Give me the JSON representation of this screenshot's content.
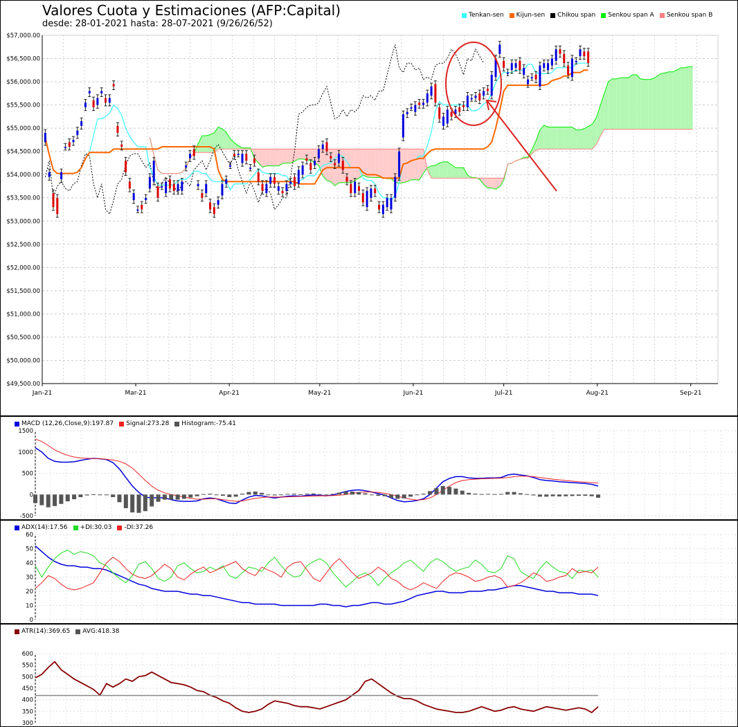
{
  "header": {
    "title": "Valores Cuota y Estimaciones (AFP:Capital)",
    "subtitle": "desde: 28-01-2021 hasta: 28-07-2021 (9/26/26/52)"
  },
  "colors": {
    "tenkan": "#33ffff",
    "kijun": "#ff6600",
    "chikou": "#000000",
    "senkouA": "#00ee00",
    "senkouB": "#ff8080",
    "cloud_bull": "#b3f7b3",
    "cloud_bear": "#ffcccc",
    "candle_up": "#0000dd",
    "candle_down": "#dd0000",
    "macd": "#0000dd",
    "signal": "#ee2222",
    "hist": "#555555",
    "adx": "#0000dd",
    "plus_di": "#22dd22",
    "minus_di": "#ee2222",
    "atr": "#880000",
    "atr_avg": "#888888",
    "annotation": "#dd2222"
  },
  "legends": {
    "main": [
      {
        "label": "Tenkan-sen",
        "color": "#33ffff"
      },
      {
        "label": "Kijun-sen",
        "color": "#ff6600"
      },
      {
        "label": "Chikou span",
        "color": "#000000"
      },
      {
        "label": "Senkou span A",
        "color": "#00ee00"
      },
      {
        "label": "Senkou span B",
        "color": "#ff8080"
      }
    ],
    "macd": [
      {
        "label": "MACD (12,26,Close,9):197.87",
        "color": "#0000dd"
      },
      {
        "label": "Signal:273.28",
        "color": "#ee2222"
      },
      {
        "label": "Histogram:-75.41",
        "color": "#555555"
      }
    ],
    "adx": [
      {
        "label": "ADX(14):17.56",
        "color": "#0000dd"
      },
      {
        "label": "+DI:30.03",
        "color": "#22dd22"
      },
      {
        "label": "-DI:37.26",
        "color": "#ee2222"
      }
    ],
    "atr": [
      {
        "label": "ATR(14):369.65",
        "color": "#880000"
      },
      {
        "label": "AVG:418.38",
        "color": "#555555"
      }
    ]
  },
  "chart_data": [
    {
      "id": "ichimoku",
      "type": "candlestick",
      "ylim": [
        49500,
        57000
      ],
      "y_ticks": [
        49500,
        50000,
        50500,
        51000,
        51500,
        52000,
        52500,
        53000,
        53500,
        54000,
        54500,
        55000,
        55500,
        56000,
        56500,
        57000
      ],
      "y_tick_labels": [
        "$49,500.00",
        "$50,000.00",
        "$50,500.00",
        "$51,000.00",
        "$51,500.00",
        "$52,000.00",
        "$52,500.00",
        "$53,000.00",
        "$53,500.00",
        "$54,000.00",
        "$54,500.00",
        "$55,000.00",
        "$55,500.00",
        "$56,000.00",
        "$56,500.00",
        "$57,000.00"
      ],
      "x_range_days": [
        0,
        224
      ],
      "x_ticks": [
        {
          "label": "Jan-21",
          "day": 0
        },
        {
          "label": "Mar-21",
          "day": 31
        },
        {
          "label": "Apr-21",
          "day": 62
        },
        {
          "label": "May-21",
          "day": 92
        },
        {
          "label": "Jun-21",
          "day": 123
        },
        {
          "label": "Jul-21",
          "day": 153
        },
        {
          "label": "Aug-21",
          "day": 184
        },
        {
          "label": "Sep-21",
          "day": 215
        }
      ],
      "candles_close": [
        54900,
        54050,
        53300,
        53150,
        54050,
        54600,
        54600,
        54750,
        54950,
        55150,
        55550,
        55800,
        55450,
        55650,
        55800,
        55550,
        55650,
        55900,
        54900,
        54600,
        54050,
        53700,
        53600,
        53250,
        53250,
        53500,
        53950,
        54300,
        53500,
        53750,
        53850,
        53700,
        53650,
        53800,
        53850,
        54200,
        54450,
        54400,
        53800,
        53500,
        53800,
        53250,
        53150,
        53450,
        53800,
        53900,
        54200,
        54400,
        54450,
        54450,
        54300,
        54150,
        54250,
        53850,
        53650,
        53800,
        53950,
        53800,
        53750,
        53600,
        53800,
        53850,
        53750,
        54100,
        54200,
        54300,
        54100,
        54300,
        54550,
        54650,
        54500,
        54350,
        54200,
        54450,
        54100,
        53850,
        53600,
        53850,
        53650,
        53400,
        53650,
        53700,
        53600,
        53250,
        53350,
        53500,
        53500,
        53950,
        54500,
        55300,
        55350,
        55450,
        55500,
        55500,
        55550,
        55750,
        55900,
        55550,
        55200,
        55250,
        55400,
        55250,
        55400,
        55350,
        55450,
        55700,
        55650,
        55700,
        55600,
        55800,
        55800,
        56150,
        56500,
        56800,
        56300,
        56200,
        56400,
        56400,
        56250,
        56300,
        56050,
        56100,
        56050,
        56350,
        56400,
        56400,
        56500,
        56700,
        56600,
        56400,
        56150,
        56500,
        56450,
        56700,
        56550,
        56400
      ],
      "candles_open": [
        54700,
        53950,
        53600,
        53500,
        53900,
        54600,
        54700,
        54700,
        54850,
        55050,
        55450,
        55750,
        55600,
        55500,
        55750,
        55650,
        55550,
        55950,
        55050,
        54650,
        54300,
        53850,
        53450,
        53250,
        53350,
        53450,
        53700,
        53850,
        53750,
        53750,
        53600,
        53900,
        53800,
        53650,
        53650,
        54150,
        54350,
        54550,
        53750,
        53600,
        53600,
        53400,
        53300,
        53350,
        53550,
        53800,
        54200,
        54450,
        54450,
        54250,
        54450,
        54150,
        54350,
        54050,
        53800,
        53600,
        53800,
        53950,
        53650,
        53650,
        53650,
        53800,
        53950,
        53800,
        54000,
        54350,
        54250,
        54200,
        54350,
        54550,
        54700,
        54400,
        54250,
        54250,
        54300,
        53950,
        53800,
        53600,
        53750,
        53600,
        53300,
        53500,
        53700,
        53350,
        53150,
        53300,
        53250,
        53500,
        53950,
        54800,
        55300,
        55450,
        55350,
        55550,
        55500,
        55550,
        55700,
        55950,
        55450,
        55050,
        55100,
        55350,
        55300,
        55450,
        55500,
        55450,
        55650,
        55650,
        55750,
        55700,
        55850,
        55700,
        56100,
        56600,
        56450,
        56200,
        56250,
        56300,
        56450,
        56150,
        55950,
        56100,
        56150,
        55900,
        56300,
        56250,
        56350,
        56450,
        56700,
        56600,
        56350,
        56100,
        56450,
        56550,
        56650,
        56650
      ]
    },
    {
      "id": "macd",
      "type": "line",
      "ylim": [
        -500,
        1500
      ],
      "y_ticks": [
        -500,
        0,
        500,
        1000,
        1500
      ],
      "series": [
        {
          "name": "MACD (12,26,Close,9)",
          "last": 197.87,
          "values": [
            1100,
            1000,
            850,
            780,
            760,
            760,
            770,
            800,
            830,
            850,
            840,
            820,
            750,
            600,
            400,
            200,
            50,
            -60,
            -80,
            -70,
            -80,
            -120,
            -150,
            -160,
            -160,
            -150,
            -100,
            -80,
            -100,
            -150,
            -200,
            -210,
            -130,
            -60,
            -20,
            -30,
            -60,
            -80,
            -60,
            -40,
            -30,
            -40,
            -20,
            -10,
            -20,
            -30,
            -10,
            30,
            70,
            100,
            110,
            90,
            60,
            20,
            -10,
            -80,
            -140,
            -170,
            -160,
            -140,
            -100,
            0,
            150,
            300,
            380,
            420,
            420,
            390,
            380,
            380,
            390,
            390,
            400,
            460,
            480,
            460,
            440,
            400,
            350,
            330,
            320,
            300,
            290,
            280,
            270,
            260,
            240,
            200
          ]
        },
        {
          "name": "Signal",
          "last": 273.28,
          "values": [
            1300,
            1250,
            1150,
            1050,
            980,
            920,
            880,
            860,
            850,
            845,
            840,
            830,
            810,
            780,
            720,
            620,
            480,
            330,
            200,
            100,
            40,
            0,
            -30,
            -60,
            -90,
            -110,
            -110,
            -100,
            -100,
            -120,
            -140,
            -160,
            -150,
            -120,
            -90,
            -70,
            -60,
            -60,
            -60,
            -55,
            -50,
            -45,
            -40,
            -35,
            -30,
            -30,
            -25,
            -15,
            0,
            30,
            50,
            60,
            60,
            50,
            30,
            0,
            -40,
            -80,
            -110,
            -130,
            -120,
            -80,
            0,
            100,
            200,
            280,
            330,
            350,
            360,
            370,
            375,
            380,
            385,
            400,
            420,
            430,
            430,
            420,
            400,
            380,
            360,
            345,
            330,
            315,
            300,
            290,
            280,
            270
          ]
        },
        {
          "name": "Histogram",
          "last": -75.41,
          "values": [
            -200,
            -250,
            -300,
            -270,
            -220,
            -160,
            -110,
            -60,
            -20,
            5,
            0,
            -10,
            -60,
            -180,
            -320,
            -420,
            -430,
            -390,
            -280,
            -170,
            -120,
            -120,
            -120,
            -100,
            -70,
            -40,
            10,
            20,
            0,
            -30,
            -60,
            -50,
            20,
            60,
            70,
            40,
            0,
            -20,
            0,
            15,
            20,
            5,
            20,
            25,
            10,
            0,
            15,
            45,
            70,
            70,
            60,
            30,
            0,
            -30,
            -40,
            -80,
            -100,
            -90,
            -50,
            -10,
            20,
            80,
            150,
            200,
            180,
            140,
            90,
            40,
            20,
            10,
            15,
            10,
            15,
            60,
            60,
            30,
            10,
            -20,
            -50,
            -50,
            -40,
            -45,
            -40,
            -35,
            -30,
            -30,
            -40,
            -75
          ]
        }
      ]
    },
    {
      "id": "adx",
      "type": "line",
      "ylim": [
        0,
        60
      ],
      "y_ticks": [
        0,
        10,
        20,
        30,
        40,
        50,
        60
      ],
      "series": [
        {
          "name": "ADX(14)",
          "last": 17.56,
          "values": [
            52,
            48,
            44,
            41,
            39,
            38,
            38,
            37,
            37,
            36,
            36,
            35,
            33,
            31,
            29,
            27,
            25,
            24,
            22,
            21,
            20,
            20,
            20,
            19,
            18,
            18,
            17,
            17,
            16,
            15,
            14,
            13,
            12,
            12,
            11,
            11,
            11,
            11,
            10,
            10,
            10,
            10,
            10,
            10,
            11,
            11,
            10,
            10,
            9,
            10,
            10,
            11,
            12,
            12,
            11,
            11,
            12,
            13,
            15,
            17,
            18,
            19,
            20,
            20,
            19,
            19,
            19,
            20,
            20,
            20,
            21,
            21,
            22,
            23,
            24,
            24,
            23,
            22,
            21,
            20,
            20,
            19,
            19,
            19,
            18,
            18,
            18,
            17
          ]
        },
        {
          "name": "+DI",
          "last": 30.03,
          "values": [
            38,
            30,
            37,
            43,
            47,
            49,
            46,
            48,
            47,
            45,
            40,
            38,
            33,
            29,
            26,
            31,
            39,
            41,
            36,
            29,
            27,
            30,
            38,
            40,
            36,
            33,
            34,
            37,
            35,
            38,
            31,
            29,
            33,
            37,
            36,
            34,
            40,
            44,
            38,
            33,
            30,
            31,
            38,
            41,
            43,
            40,
            33,
            28,
            23,
            27,
            31,
            33,
            30,
            24,
            29,
            33,
            36,
            40,
            42,
            38,
            34,
            40,
            43,
            41,
            37,
            34,
            36,
            37,
            42,
            39,
            34,
            33,
            36,
            45,
            43,
            34,
            31,
            29,
            36,
            41,
            37,
            34,
            33,
            29,
            35,
            34,
            35,
            30
          ]
        },
        {
          "name": "-DI",
          "last": 37.26,
          "values": [
            22,
            26,
            31,
            29,
            25,
            22,
            21,
            22,
            24,
            26,
            33,
            40,
            44,
            41,
            36,
            32,
            30,
            29,
            31,
            35,
            39,
            36,
            30,
            28,
            32,
            35,
            37,
            33,
            35,
            37,
            39,
            41,
            36,
            33,
            31,
            37,
            35,
            33,
            30,
            37,
            40,
            41,
            35,
            29,
            27,
            33,
            39,
            43,
            38,
            33,
            29,
            31,
            33,
            37,
            34,
            29,
            27,
            23,
            21,
            23,
            26,
            24,
            22,
            27,
            31,
            33,
            32,
            30,
            27,
            28,
            30,
            31,
            29,
            23,
            24,
            26,
            29,
            33,
            31,
            27,
            28,
            30,
            31,
            36,
            33,
            34,
            33,
            37
          ]
        }
      ]
    },
    {
      "id": "atr",
      "type": "line",
      "ylim": [
        300,
        600
      ],
      "y_ticks": [
        300,
        350,
        400,
        450,
        500,
        550,
        600
      ],
      "series": [
        {
          "name": "ATR(14)",
          "last": 369.65,
          "values": [
            495,
            510,
            540,
            565,
            530,
            510,
            490,
            475,
            460,
            445,
            420,
            470,
            455,
            470,
            490,
            480,
            500,
            505,
            520,
            505,
            490,
            475,
            470,
            465,
            455,
            440,
            435,
            420,
            410,
            395,
            385,
            365,
            350,
            345,
            350,
            360,
            380,
            395,
            390,
            385,
            375,
            370,
            370,
            365,
            360,
            370,
            380,
            390,
            400,
            420,
            440,
            480,
            490,
            470,
            450,
            430,
            415,
            405,
            405,
            395,
            380,
            370,
            360,
            355,
            350,
            345,
            345,
            350,
            360,
            370,
            360,
            350,
            355,
            365,
            370,
            360,
            355,
            350,
            360,
            370,
            365,
            360,
            355,
            360,
            365,
            360,
            345,
            370
          ]
        },
        {
          "name": "AVG",
          "last": 418.38,
          "values": [
            418.38
          ]
        }
      ]
    }
  ],
  "annotations": [
    {
      "type": "ellipse",
      "label": "highlight",
      "color": "#dd2222"
    },
    {
      "type": "arrow",
      "color": "#dd2222"
    }
  ]
}
